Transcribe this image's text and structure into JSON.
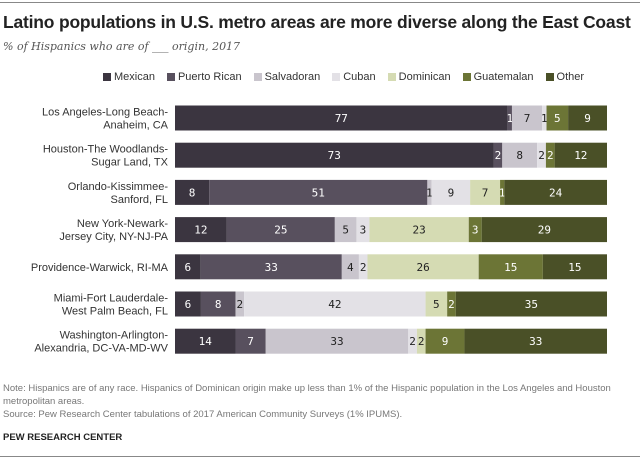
{
  "title": "Latino populations in U.S. metro areas are more diverse along the East Coast",
  "subtitle": "% of Hispanics who are of ___ origin, 2017",
  "note": "Note: Hispanics are of any race. Hispanics of Dominican origin make up less than 1% of the Hispanic population in the Los Angeles and Houston metropolitan areas.",
  "source": "Source: Pew Research Center tabulations of 2017 American Community Surveys (1% IPUMS).",
  "brand": "PEW RESEARCH CENTER",
  "chart_data": {
    "type": "bar",
    "orientation": "horizontal",
    "stacked": true,
    "title": "Latino populations in U.S. metro areas are more diverse along the East Coast",
    "subtitle": "% of Hispanics who are of ___ origin, 2017",
    "xlabel": "",
    "ylabel": "",
    "xlim": [
      0,
      100
    ],
    "grid": false,
    "legend_position": "top",
    "categories": [
      [
        "Los Angeles-Long Beach-",
        "Anaheim, CA"
      ],
      [
        "Houston-The Woodlands-",
        "Sugar Land, TX"
      ],
      [
        "Orlando-Kissimmee-",
        "Sanford, FL"
      ],
      [
        "New York-Newark-",
        "Jersey City, NY-NJ-PA"
      ],
      [
        "Providence-Warwick, RI-MA"
      ],
      [
        "Miami-Fort Lauderdale-",
        "West Palm Beach, FL"
      ],
      [
        "Washington-Arlington-",
        "Alexandria, DC-VA-MD-WV"
      ]
    ],
    "series": [
      {
        "name": "Mexican",
        "color": "#3b3540",
        "label_color": "#ffffff",
        "values": [
          77,
          73,
          8,
          12,
          6,
          6,
          14
        ]
      },
      {
        "name": "Puerto Rican",
        "color": "#58505e",
        "label_color": "#ffffff",
        "values": [
          1,
          2,
          51,
          25,
          33,
          8,
          7
        ]
      },
      {
        "name": "Salvadoran",
        "color": "#c9c5cd",
        "label_color": "#222222",
        "values": [
          7,
          8,
          1,
          5,
          4,
          2,
          33
        ]
      },
      {
        "name": "Cuban",
        "color": "#e3e1e6",
        "label_color": "#222222",
        "values": [
          1,
          2,
          9,
          3,
          2,
          42,
          2
        ]
      },
      {
        "name": "Dominican",
        "color": "#d5dbb3",
        "label_color": "#222222",
        "values": [
          0,
          0,
          7,
          23,
          26,
          5,
          2
        ]
      },
      {
        "name": "Guatemalan",
        "color": "#6c7536",
        "label_color": "#ffffff",
        "values": [
          5,
          2,
          1,
          3,
          15,
          2,
          9
        ]
      },
      {
        "name": "Other",
        "color": "#4a5027",
        "label_color": "#ffffff",
        "values": [
          9,
          12,
          24,
          29,
          15,
          35,
          33
        ]
      }
    ]
  }
}
